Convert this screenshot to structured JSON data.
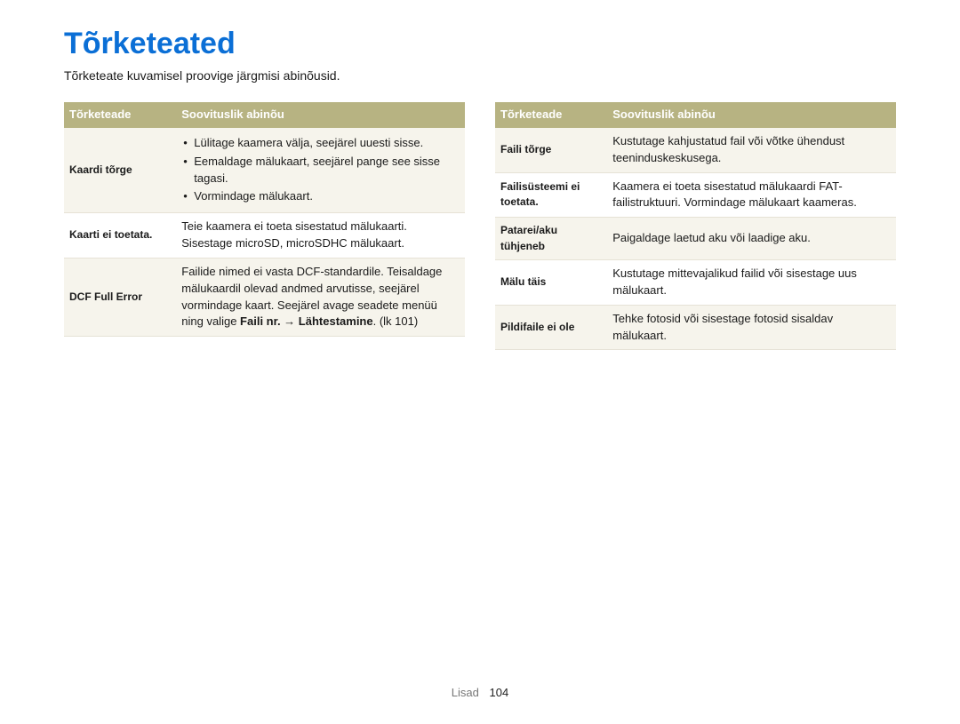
{
  "colors": {
    "title": "#0b6fd6",
    "header_bg": "#b7b382",
    "header_text": "#ffffff",
    "row_shade": "#f6f4ec",
    "row_plain": "#ffffff",
    "border": "#e6e2d6",
    "footer_sec": "#777777",
    "footer_pn": "#222222"
  },
  "title": "Tõrketeated",
  "subtitle": "Tõrketeate kuvamisel proovige järgmisi abinõusid.",
  "headers": {
    "col1": "Tõrketeade",
    "col2": "Soovituslik abinõu"
  },
  "left_rows": [
    {
      "label": "Kaardi tõrge",
      "shaded": true,
      "type": "list",
      "items": [
        "Lülitage kaamera välja, seejärel uuesti sisse.",
        "Eemaldage mälukaart, seejärel pange see sisse tagasi.",
        "Vormindage mälukaart."
      ]
    },
    {
      "label": "Kaarti ei toetata.",
      "shaded": false,
      "type": "text",
      "text": "Teie kaamera ei toeta sisestatud mälukaarti. Sisestage microSD, microSDHC mälukaart."
    },
    {
      "label": "DCF Full Error",
      "shaded": true,
      "type": "rich",
      "pre": "Failide nimed ei vasta DCF-standardile. Teisaldage mälukaardil olevad andmed arvutisse, seejärel vormindage kaart. Seejärel avage seadete menüü ning valige ",
      "bold1": "Faili nr.",
      "arrow": " → ",
      "bold2": "Lähtestamine",
      "post": ". (lk 101)"
    }
  ],
  "right_rows": [
    {
      "label": "Faili tõrge",
      "shaded": true,
      "type": "text",
      "text": "Kustutage kahjustatud fail või võtke ühendust teeninduskeskusega."
    },
    {
      "label": "Failisüsteemi ei toetata.",
      "shaded": false,
      "type": "text",
      "text": "Kaamera ei toeta sisestatud mälukaardi FAT-failistruktuuri. Vormindage mälukaart kaameras."
    },
    {
      "label": "Patarei/aku tühjeneb",
      "shaded": true,
      "type": "text",
      "text": "Paigaldage laetud aku või laadige aku."
    },
    {
      "label": "Mälu täis",
      "shaded": false,
      "type": "text",
      "text": "Kustutage mittevajalikud failid või sisestage uus mälukaart."
    },
    {
      "label": "Pildifaile ei ole",
      "shaded": true,
      "type": "text",
      "text": "Tehke fotosid või sisestage fotosid sisaldav mälukaart."
    }
  ],
  "footer": {
    "section": "Lisad",
    "page": "104"
  }
}
